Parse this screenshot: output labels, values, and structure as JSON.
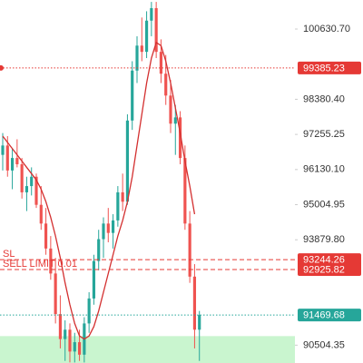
{
  "chart_data": {
    "type": "candlestick",
    "up_color": "#26a69a",
    "down_color": "#ef5350",
    "ylim": [
      89933,
      101561
    ],
    "yticks": [
      {
        "value": 100630.7,
        "label": "100630.70"
      },
      {
        "value": 98380.4,
        "label": "98380.40"
      },
      97255.25,
      {
        "value": 96130.1,
        "label": "96130.10"
      },
      95004.95,
      {
        "value": 93879.8,
        "label": "93879.80"
      },
      90504.35
    ],
    "open": [
      96600,
      96900,
      96100,
      96500,
      96300,
      95400,
      95600,
      95900,
      95000,
      94400,
      93600,
      92800,
      91500,
      90700,
      91000,
      90300,
      90600,
      90200,
      91200,
      92000,
      93200,
      93900,
      94400,
      94100,
      94500,
      95400,
      95100,
      97700,
      99300,
      100100,
      99900,
      100900,
      101300,
      99900,
      99200,
      98500,
      97600,
      97800,
      96500,
      94400,
      92700,
      91000
    ],
    "high": [
      97300,
      97200,
      96800,
      97100,
      96500,
      95900,
      96200,
      96000,
      95600,
      94900,
      94000,
      93300,
      92100,
      91300,
      91200,
      90900,
      91000,
      91400,
      92200,
      93400,
      94200,
      94600,
      94900,
      94700,
      95600,
      96000,
      97900,
      99600,
      100400,
      101000,
      101200,
      101500,
      101500,
      100300,
      99800,
      99000,
      98200,
      98000,
      96900,
      94800,
      93100,
      91600
    ],
    "low": [
      96100,
      95900,
      95500,
      96200,
      95200,
      94800,
      95300,
      94900,
      94200,
      93400,
      92600,
      91200,
      90400,
      90000,
      89950,
      89950,
      90000,
      89950,
      90900,
      91800,
      92900,
      93300,
      93800,
      93600,
      94300,
      94800,
      95000,
      97400,
      98900,
      99600,
      99700,
      100400,
      99700,
      98900,
      98200,
      97300,
      96600,
      96300,
      94200,
      92500,
      90400,
      90000
    ],
    "close": [
      96900,
      96100,
      96500,
      96300,
      95400,
      95600,
      95900,
      95000,
      94400,
      93600,
      92800,
      91500,
      90700,
      91000,
      90300,
      90600,
      90200,
      91200,
      92000,
      93200,
      93900,
      94400,
      94100,
      94500,
      95400,
      95100,
      97700,
      99300,
      100100,
      99900,
      100900,
      101300,
      99900,
      99200,
      98500,
      97600,
      97800,
      96500,
      94400,
      92700,
      91000,
      91469.68
    ],
    "moving_average": {
      "color": "#d32f2f",
      "values": [
        97200,
        97000,
        96800,
        96600,
        96400,
        96200,
        96000,
        95800,
        95500,
        95100,
        94600,
        94000,
        93300,
        92500,
        91800,
        91200,
        90800,
        90700,
        90800,
        91100,
        91600,
        92200,
        92800,
        93400,
        94000,
        94500,
        95100,
        95900,
        96900,
        97900,
        98900,
        99700,
        100200,
        100100,
        99600,
        98900,
        98100,
        97300,
        96400,
        95600,
        94700,
        null
      ]
    },
    "price_lines": [
      {
        "value": 99385.23,
        "color": "#e53935"
      },
      {
        "value": 93244.26,
        "name": "SL",
        "color": "#e53935"
      },
      {
        "value": 92925.82,
        "name": "SELL LIMIT 0.01",
        "color": "#e53935"
      },
      {
        "value": 91469.68,
        "color": "#26a69a"
      }
    ],
    "zone": {
      "top": 90795,
      "color": "#c9f5cf"
    }
  }
}
